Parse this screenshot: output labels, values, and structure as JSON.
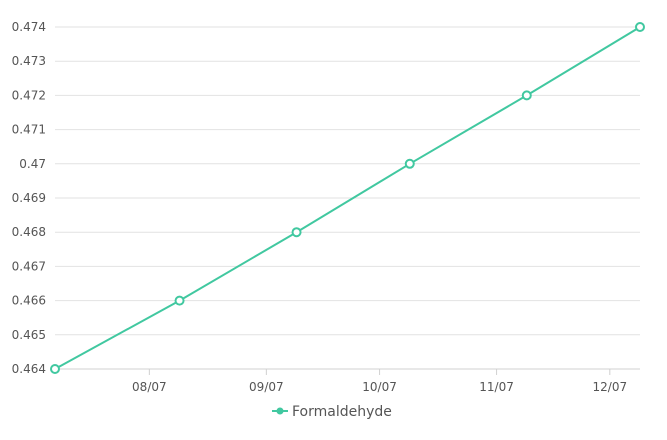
{
  "chart_data": {
    "type": "line",
    "title": "",
    "xlabel": "",
    "ylabel": "",
    "x_ticks": [
      "08/07",
      "09/07",
      "10/07",
      "11/07",
      "12/07"
    ],
    "y_ticks": [
      "0.464",
      "0.465",
      "0.466",
      "0.467",
      "0.468",
      "0.469",
      "0.47",
      "0.471",
      "0.472",
      "0.473",
      "0.474"
    ],
    "ylim": [
      0.464,
      0.474
    ],
    "grid": true,
    "legend_position": "bottom",
    "series": [
      {
        "name": "Formaldehyde",
        "color": "#41c8a0",
        "points": [
          {
            "x": "2025-07-07",
            "y": 0.464
          },
          {
            "x": "2025-08-09",
            "y": 0.466
          },
          {
            "x": "2025-09-09",
            "y": 0.468
          },
          {
            "x": "2025-10-09",
            "y": 0.47
          },
          {
            "x": "2025-11-09",
            "y": 0.472
          },
          {
            "x": "2025-12-09",
            "y": 0.474
          }
        ]
      }
    ]
  }
}
